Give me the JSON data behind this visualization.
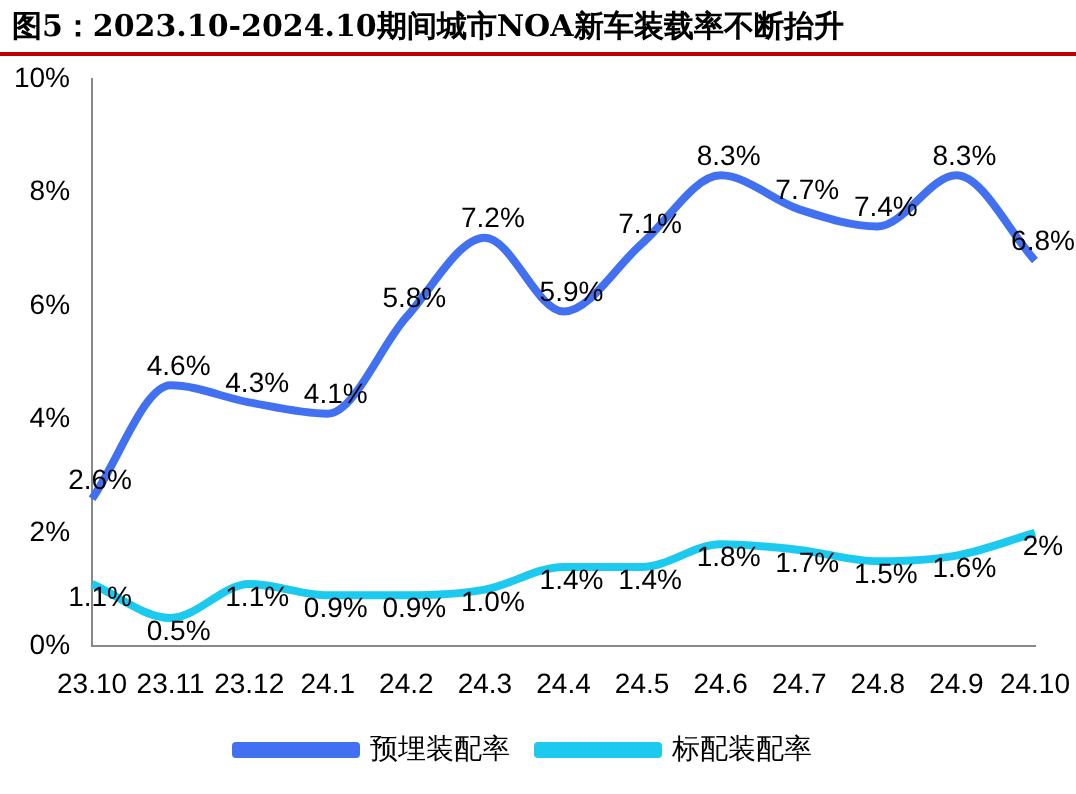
{
  "chart_data": {
    "type": "line",
    "title": "图5：2023.10-2024.10期间城市NOA新车装载率不断抬升",
    "categories": [
      "23.10",
      "23.11",
      "23.12",
      "24.1",
      "24.2",
      "24.3",
      "24.4",
      "24.5",
      "24.6",
      "24.7",
      "24.8",
      "24.9",
      "24.10"
    ],
    "series": [
      {
        "name": "预埋装配率",
        "color": "#4170f0",
        "values": [
          2.6,
          4.6,
          4.3,
          4.1,
          5.8,
          7.2,
          5.9,
          7.1,
          8.3,
          7.7,
          7.4,
          8.3,
          6.8
        ],
        "value_labels": [
          "2.6%",
          "4.6%",
          "4.3%",
          "4.1%",
          "5.8%",
          "7.2%",
          "5.9%",
          "7.1%",
          "8.3%",
          "7.7%",
          "7.4%",
          "8.3%",
          "6.8%"
        ]
      },
      {
        "name": "标配装配率",
        "color": "#1ccaf0",
        "values": [
          1.1,
          0.5,
          1.1,
          0.9,
          0.9,
          1.0,
          1.4,
          1.4,
          1.8,
          1.7,
          1.5,
          1.6,
          2
        ],
        "value_labels": [
          "1.1%",
          "0.5%",
          "1.1%",
          "0.9%",
          "0.9%",
          "1.0%",
          "1.4%",
          "1.4%",
          "1.8%",
          "1.7%",
          "1.5%",
          "1.6%",
          "2%"
        ]
      }
    ],
    "ylim": [
      0,
      10
    ],
    "yticks": [
      {
        "value": 0,
        "label": "0%"
      },
      {
        "value": 2,
        "label": "2%"
      },
      {
        "value": 4,
        "label": "4%"
      },
      {
        "value": 6,
        "label": "6%"
      },
      {
        "value": 8,
        "label": "8%"
      },
      {
        "value": 10,
        "label": "10%"
      }
    ],
    "grid": false,
    "legend": "bottom",
    "marker": "none",
    "line_style": "solid"
  }
}
